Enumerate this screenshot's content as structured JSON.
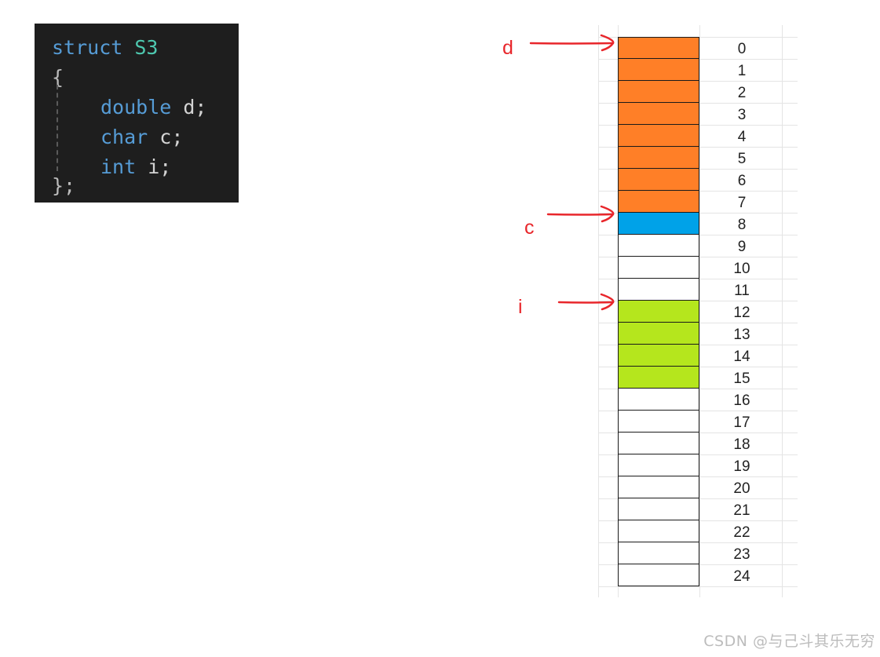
{
  "code": {
    "line1_keyword": "struct",
    "line1_name": "S3",
    "open_brace": "{",
    "line2_type": "double",
    "line2_rest": " d;",
    "line3_type": "char",
    "line3_rest": " c;",
    "line4_type": "int",
    "line4_rest": " i;",
    "close": "};"
  },
  "memory": {
    "offsets": [
      "0",
      "1",
      "2",
      "3",
      "4",
      "5",
      "6",
      "7",
      "8",
      "9",
      "10",
      "11",
      "12",
      "13",
      "14",
      "15",
      "16",
      "17",
      "18",
      "19",
      "20",
      "21",
      "22",
      "23",
      "24"
    ],
    "fills": [
      "orange",
      "orange",
      "orange",
      "orange",
      "orange",
      "orange",
      "orange",
      "orange",
      "blue",
      "empty",
      "empty",
      "empty",
      "green",
      "green",
      "green",
      "green",
      "empty",
      "empty",
      "empty",
      "empty",
      "empty",
      "empty",
      "empty",
      "empty",
      "empty"
    ],
    "colors": {
      "orange": "#ff7f27",
      "blue": "#00a2e8",
      "green": "#b5e61d",
      "empty": "#ffffff",
      "arrow": "#e8262b"
    },
    "pointers": [
      {
        "label": "d",
        "offset": 0
      },
      {
        "label": "c",
        "offset": 8
      },
      {
        "label": "i",
        "offset": 12
      }
    ]
  },
  "watermark": "CSDN @与己斗其乐无穷"
}
